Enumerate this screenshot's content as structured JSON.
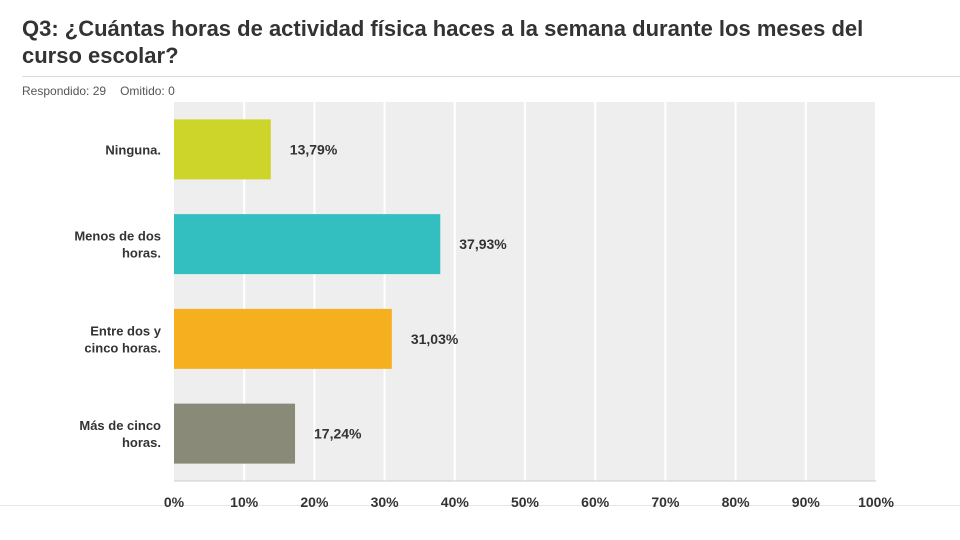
{
  "question": {
    "title": "Q3: ¿Cuántas horas de actividad física haces a la semana durante los meses del curso escolar?"
  },
  "meta": {
    "answered": "Respondido: 29",
    "skipped": "Omitido: 0"
  },
  "chart_data": {
    "type": "bar",
    "orientation": "horizontal",
    "categories": [
      [
        "Ninguna."
      ],
      [
        "Menos de dos",
        "horas."
      ],
      [
        "Entre dos y",
        "cinco horas."
      ],
      [
        "Más de cinco",
        "horas."
      ]
    ],
    "values": [
      13.79,
      37.93,
      31.03,
      17.24
    ],
    "value_labels": [
      "13,79%",
      "37,93%",
      "31,03%",
      "17,24%"
    ],
    "colors": [
      "#cdd42a",
      "#33bfbf",
      "#f6b01f",
      "#8a8a78"
    ],
    "xlim": [
      0,
      100
    ],
    "xticks": [
      "0%",
      "10%",
      "20%",
      "30%",
      "40%",
      "50%",
      "60%",
      "70%",
      "80%",
      "90%",
      "100%"
    ],
    "grid": true,
    "title": "",
    "xlabel": "",
    "ylabel": ""
  }
}
